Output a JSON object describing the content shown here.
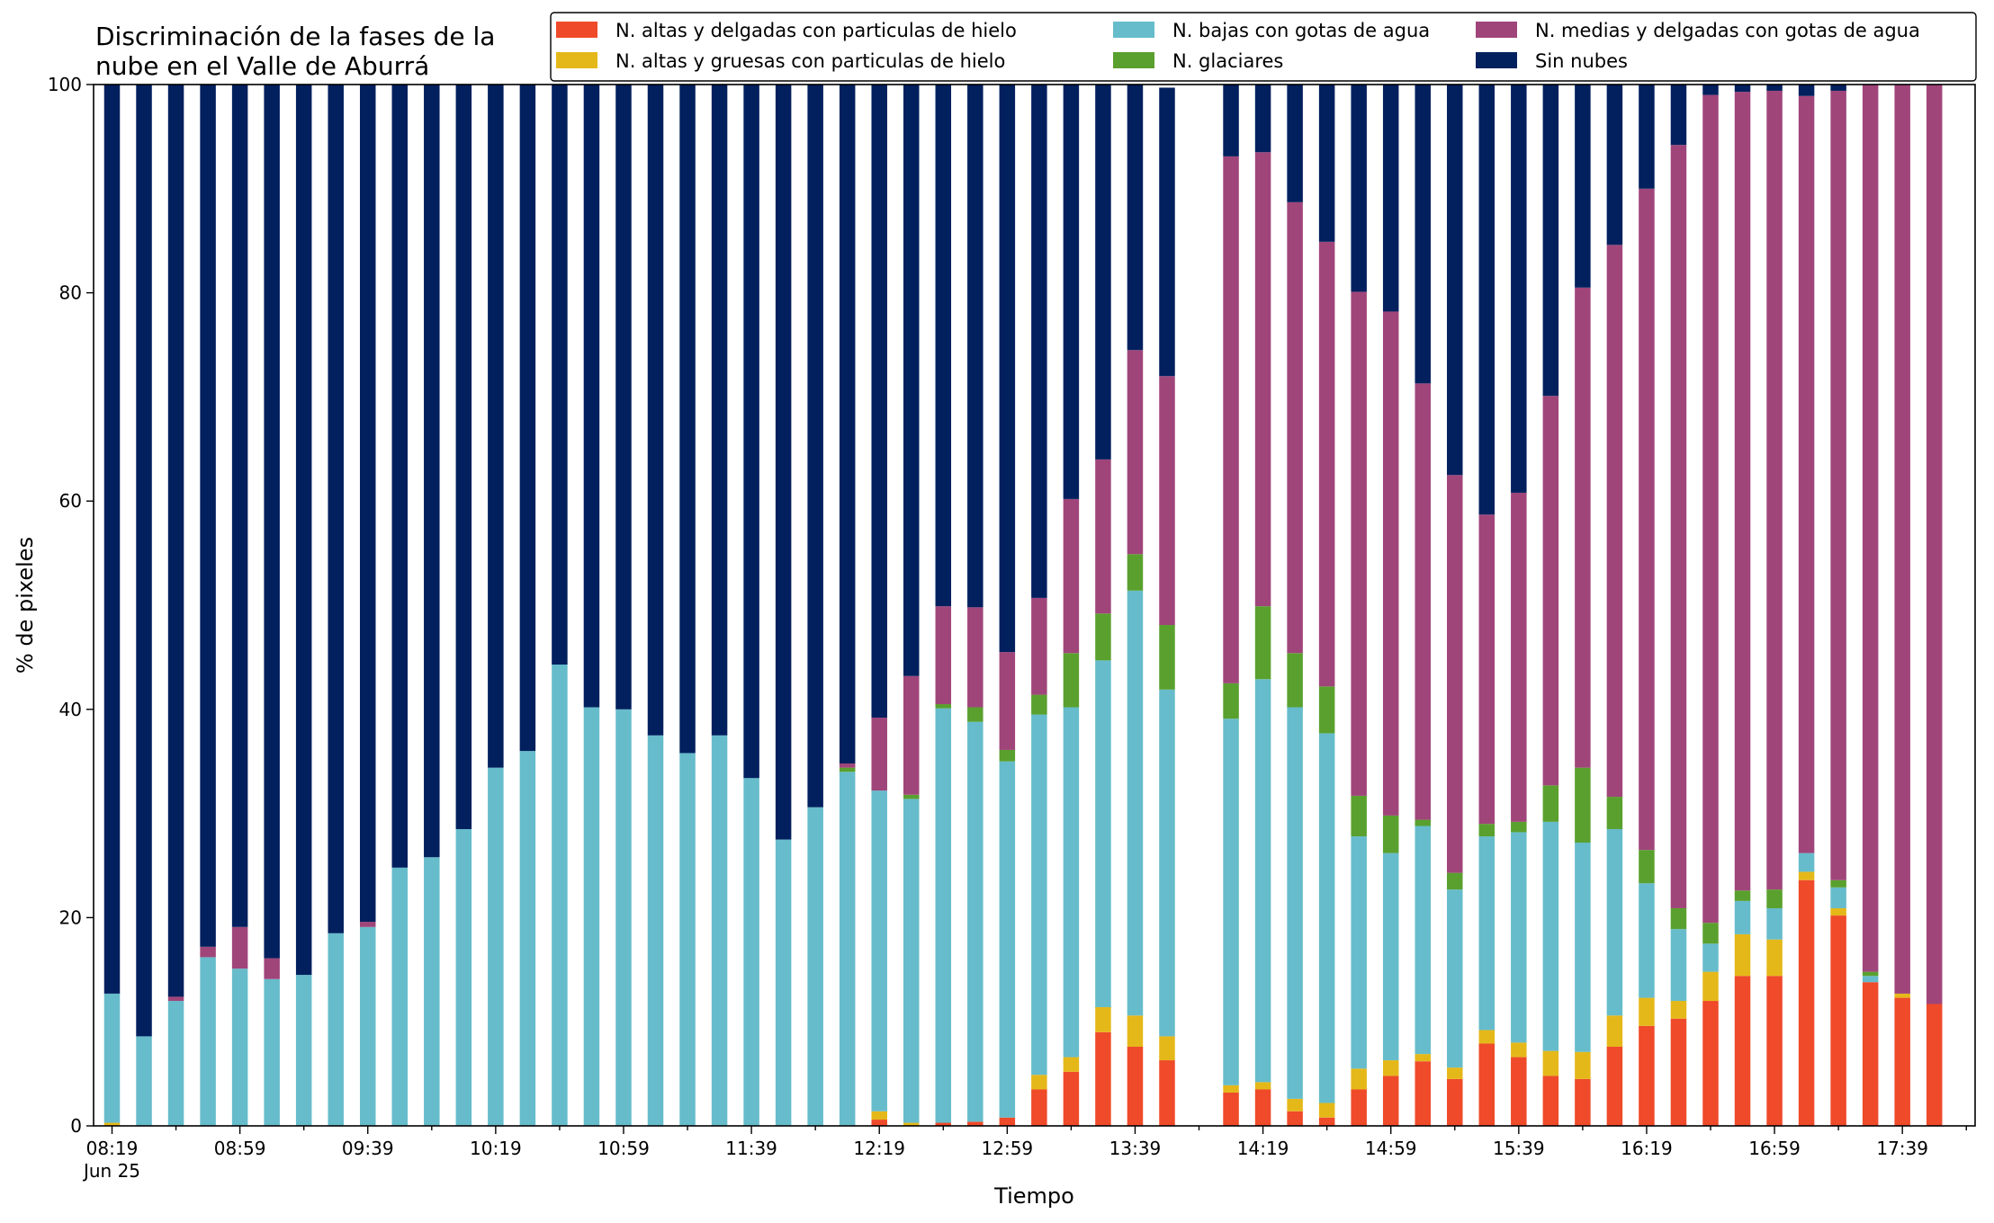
{
  "chart_data": {
    "type": "bar",
    "stacked": true,
    "title_lines": [
      "Discriminación de la fases de la",
      "nube en el Valle de Aburrá"
    ],
    "xlabel": "Tiempo",
    "ylabel": "% de pixeles",
    "ylim": [
      0,
      100
    ],
    "yticks": [
      0,
      20,
      40,
      60,
      80,
      100
    ],
    "x_start": "08:19",
    "x_step_minutes": 10,
    "x_date_label": "Jun 25",
    "xtick_labels": [
      {
        "index": 0,
        "label": "08:19"
      },
      {
        "index": 4,
        "label": "08:59"
      },
      {
        "index": 8,
        "label": "09:39"
      },
      {
        "index": 12,
        "label": "10:19"
      },
      {
        "index": 16,
        "label": "10:59"
      },
      {
        "index": 20,
        "label": "11:39"
      },
      {
        "index": 24,
        "label": "12:19"
      },
      {
        "index": 28,
        "label": "12:59"
      },
      {
        "index": 32,
        "label": "13:39"
      },
      {
        "index": 36,
        "label": "14:19"
      },
      {
        "index": 40,
        "label": "14:59"
      },
      {
        "index": 44,
        "label": "15:39"
      },
      {
        "index": 48,
        "label": "16:19"
      },
      {
        "index": 52,
        "label": "16:59"
      },
      {
        "index": 56,
        "label": "17:39"
      }
    ],
    "legend_position": "top-right",
    "missing_indices": [
      34
    ],
    "series": [
      {
        "name": "N. altas y delgadas con particulas de hielo",
        "color": "#ef4a2a",
        "values": [
          0,
          0,
          0,
          0,
          0,
          0,
          0,
          0,
          0,
          0,
          0,
          0,
          0,
          0,
          0,
          0,
          0,
          0,
          0,
          0,
          0,
          0,
          0,
          0,
          0.6,
          0,
          0.3,
          0.4,
          0.8,
          3.5,
          5.2,
          9,
          7.6,
          6.3,
          null,
          3.2,
          3.5,
          1.4,
          0.8,
          3.5,
          4.8,
          6.2,
          4.5,
          7.9,
          6.6,
          4.8,
          4.5,
          7.6,
          9.6,
          10.3,
          12,
          14.4,
          14.4,
          23.6,
          20.2,
          13.8,
          12.3,
          11.7
        ]
      },
      {
        "name": "N. altas y gruesas con particulas de hielo",
        "color": "#e5b81a",
        "values": [
          0.3,
          0,
          0,
          0,
          0,
          0,
          0,
          0,
          0,
          0,
          0,
          0,
          0,
          0,
          0,
          0,
          0,
          0,
          0,
          0,
          0,
          0,
          0,
          0,
          0.8,
          0.3,
          0,
          0,
          0,
          1.4,
          1.4,
          2.4,
          3,
          2.3,
          null,
          0.7,
          0.7,
          1.2,
          1.4,
          2,
          1.5,
          0.7,
          1.1,
          1.3,
          1.4,
          2.4,
          2.6,
          3,
          2.7,
          1.7,
          2.8,
          4,
          3.5,
          0.8,
          0.7,
          0,
          0.4,
          0
        ]
      },
      {
        "name": "N. bajas con gotas de agua",
        "color": "#66bccb",
        "values": [
          12.4,
          8.6,
          12,
          16.2,
          15.1,
          14.1,
          14.5,
          18.5,
          19.1,
          24.8,
          25.8,
          28.5,
          34.4,
          36,
          44.3,
          40.2,
          40,
          37.5,
          35.8,
          37.5,
          33.4,
          27.5,
          30.6,
          34,
          30.8,
          31.1,
          39.8,
          38.4,
          34.2,
          34.6,
          33.6,
          33.3,
          40.8,
          33.3,
          null,
          35.2,
          38.7,
          37.6,
          35.5,
          22.3,
          19.9,
          21.9,
          17.1,
          18.6,
          20.2,
          22,
          20.1,
          17.9,
          11,
          6.9,
          2.7,
          3.2,
          3,
          1.8,
          2,
          0.6,
          0,
          0
        ]
      },
      {
        "name": "N. glaciares",
        "color": "#5aa02e",
        "values": [
          0,
          0,
          0,
          0,
          0,
          0,
          0,
          0,
          0,
          0,
          0,
          0,
          0,
          0,
          0,
          0,
          0,
          0,
          0,
          0,
          0,
          0,
          0,
          0.4,
          0,
          0.4,
          0.4,
          1.4,
          1.1,
          1.9,
          5.2,
          4.5,
          3.5,
          6.2,
          null,
          3.4,
          7,
          5.2,
          4.5,
          3.9,
          3.6,
          0.6,
          1.6,
          1.2,
          1,
          3.5,
          7.2,
          3.1,
          3.2,
          2,
          2,
          1,
          1.8,
          0,
          0.7,
          0.4,
          0,
          0
        ]
      },
      {
        "name": "N. medias y delgadas con gotas de agua",
        "color": "#a0457a",
        "values": [
          0,
          0,
          0.4,
          1,
          4,
          2,
          0,
          0,
          0.5,
          0,
          0,
          0,
          0,
          0,
          0,
          0,
          0,
          0,
          0,
          0,
          0,
          0,
          0,
          0.4,
          7,
          11.4,
          9.4,
          9.6,
          9.4,
          9.3,
          14.8,
          14.8,
          19.6,
          23.9,
          null,
          50.6,
          43.6,
          43.3,
          42.7,
          48.4,
          48.4,
          41.9,
          38.2,
          29.7,
          31.6,
          37.4,
          46.1,
          53,
          63.5,
          73.3,
          79.5,
          76.7,
          76.7,
          72.7,
          75.8,
          85.2,
          87.3,
          88.3
        ]
      },
      {
        "name": "Sin nubes",
        "color": "#02205e",
        "values": [
          87.3,
          91.4,
          87.6,
          82.8,
          80.9,
          83.9,
          85.5,
          81.5,
          80.4,
          75.2,
          74.2,
          71.5,
          65.6,
          64,
          55.7,
          59.8,
          60,
          62.5,
          64.2,
          62.5,
          66.6,
          72.5,
          69.4,
          65.2,
          60.8,
          56.8,
          50.1,
          50.2,
          54.5,
          49.3,
          39.8,
          36,
          25.5,
          27.7,
          null,
          6.9,
          6.5,
          11.3,
          15.1,
          19.9,
          21.8,
          28.7,
          37.5,
          41.3,
          39.2,
          29.9,
          19.5,
          15.4,
          10,
          5.8,
          1,
          0.7,
          0.6,
          1.1,
          0.6,
          0,
          0,
          0
        ]
      }
    ]
  }
}
